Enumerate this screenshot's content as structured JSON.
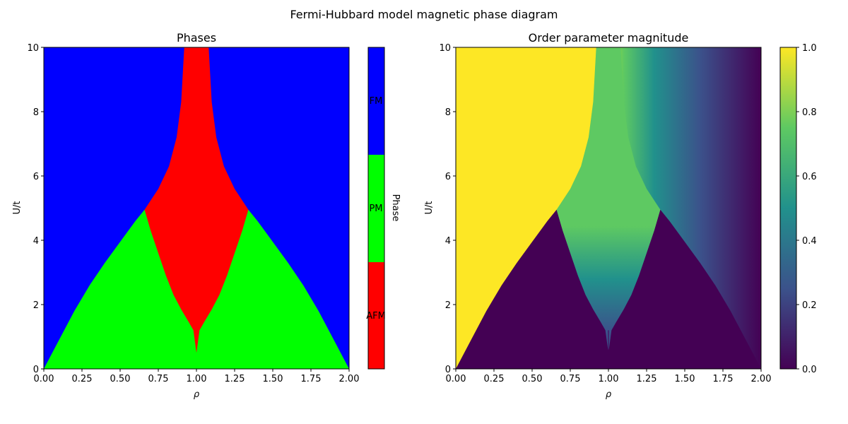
{
  "figure_title": "Fermi-Hubbard model magnetic phase diagram",
  "colors": {
    "FM": "#0000ff",
    "PM": "#00ff00",
    "AFM": "#ff0000",
    "viridis": [
      "#440154",
      "#3b528b",
      "#21918c",
      "#5ec962",
      "#fde725"
    ]
  },
  "chart_data": [
    {
      "type": "heatmap",
      "title": "Phases",
      "xlabel": "ρ",
      "ylabel": "U/t",
      "xlim": [
        0,
        2
      ],
      "ylim": [
        0,
        10
      ],
      "xticks": [
        "0.00",
        "0.25",
        "0.50",
        "0.75",
        "1.00",
        "1.25",
        "1.50",
        "1.75",
        "2.00"
      ],
      "yticks": [
        "0",
        "2",
        "4",
        "6",
        "8",
        "10"
      ],
      "categories": [
        "AFM",
        "PM",
        "FM"
      ],
      "colorbar_label": "Phase",
      "regions": [
        {
          "name": "FM",
          "description_bound": "outside PM dome and AFM wedge"
        },
        {
          "name": "PM",
          "boundary_upper": {
            "rho": [
              0,
              0.1,
              0.2,
              0.3,
              0.4,
              0.5,
              0.6,
              0.66,
              1.34,
              1.4,
              1.5,
              1.6,
              1.7,
              1.8,
              1.9,
              2.0
            ],
            "U": [
              0,
              0.9,
              1.8,
              2.6,
              3.3,
              3.95,
              4.6,
              4.95,
              4.95,
              4.6,
              3.95,
              3.3,
              2.6,
              1.8,
              0.9,
              0
            ]
          }
        },
        {
          "name": "AFM",
          "boundary": {
            "rho": [
              0.66,
              0.7,
              0.75,
              0.8,
              0.85,
              0.9,
              0.95,
              0.98,
              1.0,
              1.02,
              1.05,
              1.1,
              1.15,
              1.2,
              1.25,
              1.3,
              1.34
            ],
            "U": [
              4.95,
              4.3,
              3.6,
              2.9,
              2.3,
              1.85,
              1.45,
              1.2,
              0.5,
              1.2,
              1.45,
              1.85,
              2.3,
              2.9,
              3.6,
              4.3,
              4.95
            ]
          },
          "top_edge": {
            "rho": [
              0.66,
              0.75,
              0.82,
              0.87,
              0.9,
              0.92,
              1.08,
              1.1,
              1.13,
              1.18,
              1.25,
              1.34
            ],
            "U": [
              4.95,
              5.6,
              6.3,
              7.2,
              8.3,
              10,
              10,
              8.3,
              7.2,
              6.3,
              5.6,
              4.95
            ]
          }
        }
      ]
    },
    {
      "type": "heatmap",
      "title": "Order parameter magnitude",
      "xlabel": "ρ",
      "ylabel": "U/t",
      "xlim": [
        0,
        2
      ],
      "ylim": [
        0,
        10
      ],
      "xticks": [
        "0.00",
        "0.25",
        "0.50",
        "0.75",
        "1.00",
        "1.25",
        "1.50",
        "1.75",
        "2.00"
      ],
      "yticks": [
        "0",
        "2",
        "4",
        "6",
        "8",
        "10"
      ],
      "colorbar_range": [
        0,
        1
      ],
      "colorbar_ticks": [
        "0.0",
        "0.2",
        "0.4",
        "0.6",
        "0.8",
        "1.0"
      ],
      "colormap": "viridis",
      "values_note": "1.0 in FM region for rho < 1, decreasing toward 0 at rho = 2; ~0 in PM region; intermediate in AFM wedge"
    }
  ]
}
